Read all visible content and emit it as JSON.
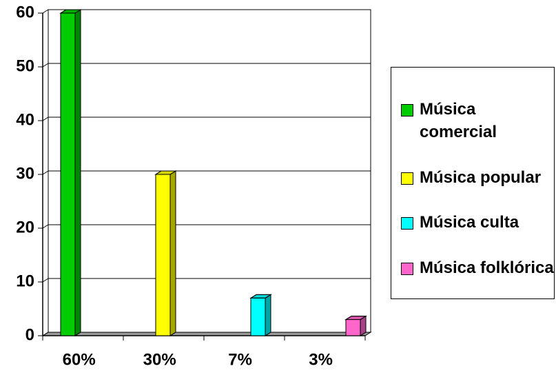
{
  "chart_data": {
    "type": "bar",
    "categories": [
      "60%",
      "30%",
      "7%",
      "3%"
    ],
    "series": [
      {
        "name": "Música comercial",
        "color": "#00cc00",
        "values": [
          60,
          null,
          null,
          null
        ]
      },
      {
        "name": "Música popular",
        "color": "#ffff00",
        "values": [
          null,
          30,
          null,
          null
        ]
      },
      {
        "name": "Música culta",
        "color": "#00ffff",
        "values": [
          null,
          null,
          7,
          null
        ]
      },
      {
        "name": "Música folklórica",
        "color": "#ff66cc",
        "values": [
          null,
          null,
          null,
          3
        ]
      }
    ],
    "ylim": [
      0,
      60
    ],
    "yticks": [
      0,
      10,
      20,
      30,
      40,
      50,
      60
    ],
    "grid": true,
    "legend": "right"
  }
}
